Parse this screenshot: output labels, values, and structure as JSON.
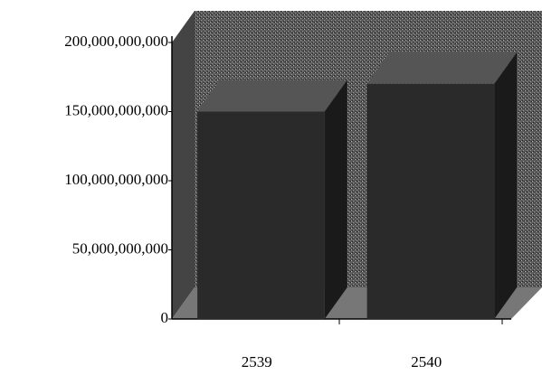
{
  "chart_data": {
    "type": "bar3d",
    "categories": [
      "2539",
      "2540"
    ],
    "values": [
      150000000000,
      170000000000
    ],
    "color": "#2a2a2a",
    "ylim": [
      0,
      200000000000
    ],
    "yticks": [
      0,
      {
        "value": 50000000000,
        "label": "50,000,000,000"
      },
      {
        "value": 100000000000,
        "label": "100,000,000,000"
      },
      {
        "value": 150000000000,
        "label": "150,000,000,000"
      },
      {
        "value": 200000000000,
        "label": "200,000,000,000"
      }
    ]
  }
}
